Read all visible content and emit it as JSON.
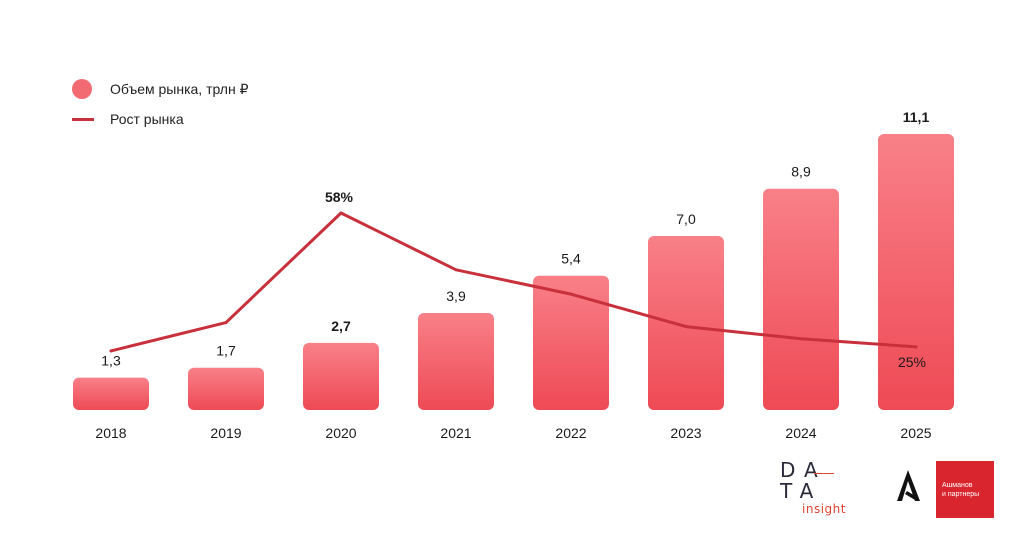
{
  "chart_data": {
    "type": "bar",
    "categories": [
      "2018",
      "2019",
      "2020",
      "2021",
      "2022",
      "2023",
      "2024",
      "2025"
    ],
    "series": [
      {
        "name": "Объем рынка, трлн ₽",
        "kind": "bar",
        "values": [
          1.3,
          1.7,
          2.7,
          3.9,
          5.4,
          7.0,
          8.9,
          11.1
        ],
        "labels": [
          "1,3",
          "1,7",
          "2,7",
          "3,9",
          "5,4",
          "7,0",
          "8,9",
          "11,1"
        ],
        "bold": [
          false,
          false,
          true,
          false,
          false,
          false,
          false,
          true
        ]
      },
      {
        "name": "Рост рынка",
        "kind": "line",
        "values_percent": [
          24,
          31,
          58,
          44,
          38,
          30,
          27,
          25
        ],
        "point_labels": {
          "2020": "58%",
          "2025": "25%"
        }
      }
    ],
    "ylim": [
      0,
      11.1
    ],
    "title": "",
    "xlabel": "",
    "ylabel": "",
    "grid": false,
    "legend_position": "top-left"
  },
  "colors": {
    "bar_top": "#f98088",
    "bar_bottom": "#ee4a55",
    "line": "#c8303c",
    "logo_red": "#d9262e",
    "logo_orange": "#e0452e"
  },
  "logos": {
    "data_insight": {
      "row1": "DA",
      "row2": "TA",
      "sub": "insight"
    },
    "ashmanov": {
      "line1": "Ашманов",
      "line2": "и партнеры"
    }
  }
}
